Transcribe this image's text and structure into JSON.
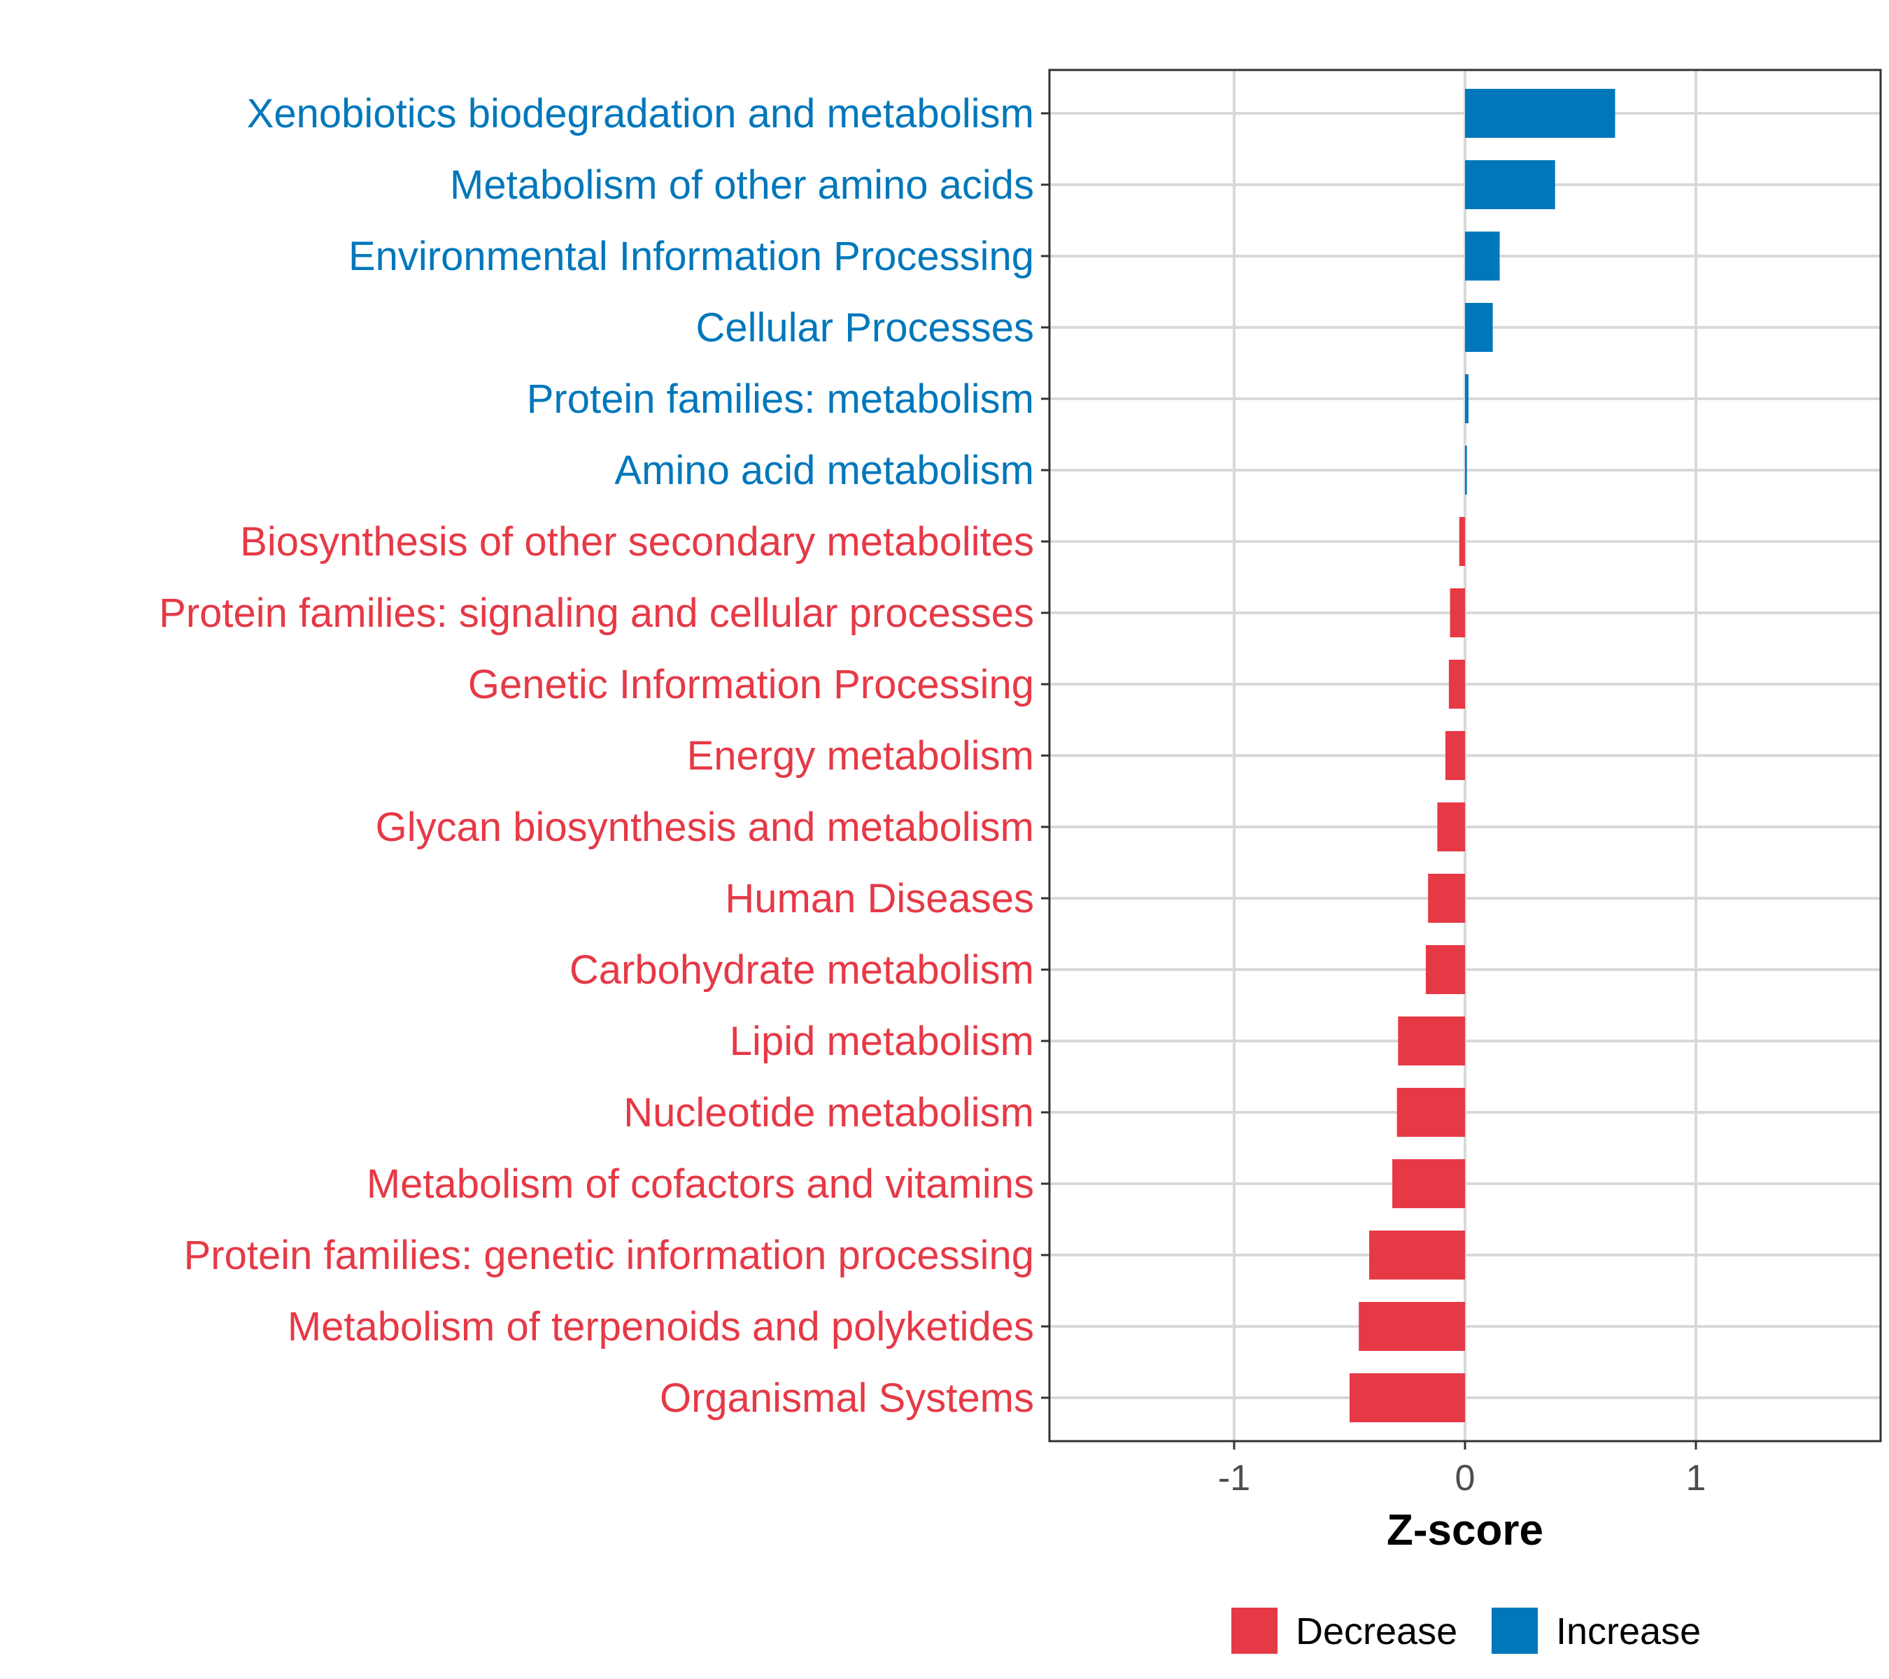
{
  "chart_data": {
    "type": "bar",
    "orientation": "horizontal",
    "title": "",
    "xlabel": "Z-score",
    "ylabel": "",
    "xlim": [
      -1.8,
      1.8
    ],
    "xticks": [
      -1,
      0,
      1
    ],
    "grid": true,
    "legend_position": "bottom",
    "colors": {
      "Decrease": "#e63946",
      "Increase": "#0077bb"
    },
    "legend": [
      {
        "name": "Decrease",
        "color": "#e63946"
      },
      {
        "name": "Increase",
        "color": "#0077bb"
      }
    ],
    "categories": [
      "Xenobiotics biodegradation and metabolism",
      "Metabolism of other amino acids",
      "Environmental Information Processing",
      "Cellular Processes",
      "Protein families: metabolism",
      "Amino acid metabolism",
      "Biosynthesis of other secondary metabolites",
      "Protein families: signaling and cellular processes",
      "Genetic Information Processing",
      "Energy metabolism",
      "Glycan biosynthesis and metabolism",
      "Human Diseases",
      "Carbohydrate metabolism",
      "Lipid metabolism",
      "Nucleotide metabolism",
      "Metabolism of cofactors and vitamins",
      "Protein families: genetic information processing",
      "Metabolism of terpenoids and polyketides",
      "Organismal Systems"
    ],
    "values": [
      0.65,
      0.39,
      0.15,
      0.12,
      0.015,
      0.008,
      -0.025,
      -0.065,
      -0.07,
      -0.085,
      -0.12,
      -0.16,
      -0.17,
      -0.29,
      -0.295,
      -0.315,
      -0.415,
      -0.46,
      -0.5
    ],
    "groups": [
      "Increase",
      "Increase",
      "Increase",
      "Increase",
      "Increase",
      "Increase",
      "Decrease",
      "Decrease",
      "Decrease",
      "Decrease",
      "Decrease",
      "Decrease",
      "Decrease",
      "Decrease",
      "Decrease",
      "Decrease",
      "Decrease",
      "Decrease",
      "Decrease"
    ]
  }
}
